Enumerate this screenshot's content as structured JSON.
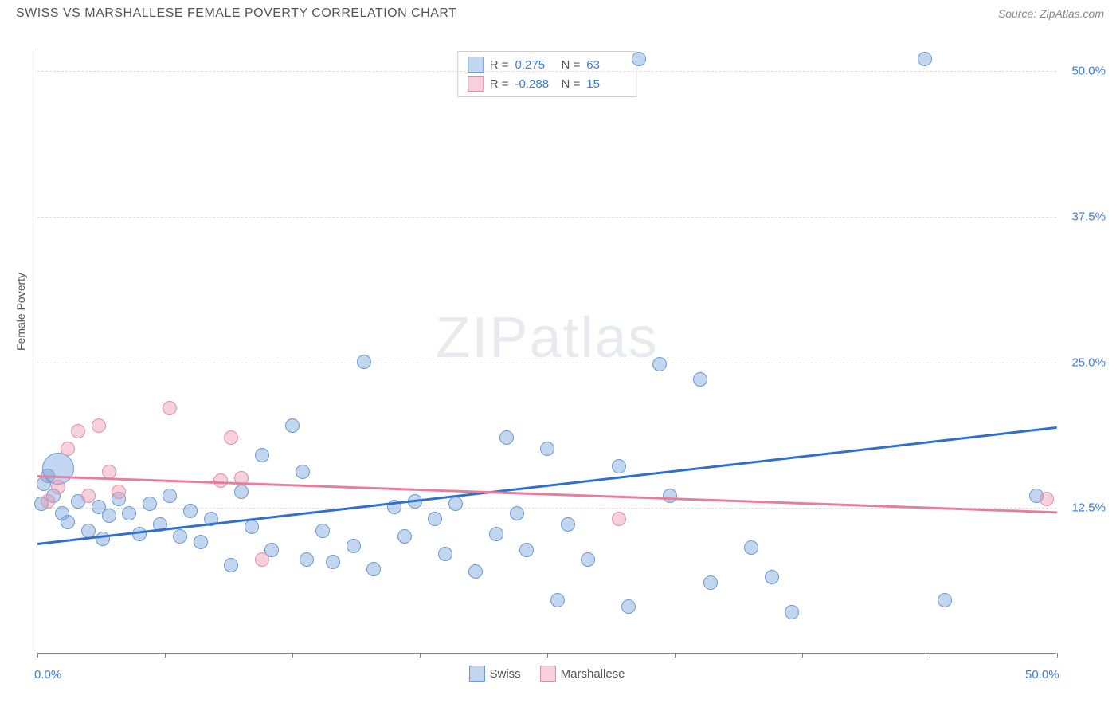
{
  "title": "SWISS VS MARSHALLESE FEMALE POVERTY CORRELATION CHART",
  "source": "Source: ZipAtlas.com",
  "ylabel": "Female Poverty",
  "watermark": "ZIPatlas",
  "chart": {
    "type": "scatter",
    "xlim": [
      0,
      50
    ],
    "ylim": [
      0,
      52
    ],
    "xticks": [
      0,
      6.25,
      12.5,
      18.75,
      25,
      31.25,
      37.5,
      43.75,
      50
    ],
    "xtick_labels": {
      "0": "0.0%",
      "50": "50.0%"
    },
    "yticks": [
      12.5,
      25.0,
      37.5,
      50.0
    ],
    "ytick_labels": [
      "12.5%",
      "25.0%",
      "37.5%",
      "50.0%"
    ],
    "grid_color": "#dddddd",
    "axis_color": "#888888",
    "tick_label_color": "#3b7dd8",
    "background_color": "#ffffff",
    "series": [
      {
        "name": "Swiss",
        "fill": "rgba(120,165,220,0.45)",
        "stroke": "#6a9ad0",
        "line_color": "#2f6fd0",
        "r": 0.275,
        "n": 63,
        "trend": {
          "x1": 0,
          "y1": 9.5,
          "x2": 50,
          "y2": 19.5
        },
        "points": [
          [
            0.3,
            14.5
          ],
          [
            0.5,
            15.2
          ],
          [
            0.2,
            12.8
          ],
          [
            0.8,
            13.5
          ],
          [
            1.2,
            12.0
          ],
          [
            1.5,
            11.2
          ],
          [
            1.0,
            15.8,
            20
          ],
          [
            2.0,
            13.0
          ],
          [
            2.5,
            10.5
          ],
          [
            3.0,
            12.5
          ],
          [
            3.2,
            9.8
          ],
          [
            3.5,
            11.8
          ],
          [
            4.0,
            13.2
          ],
          [
            4.5,
            12.0
          ],
          [
            5.0,
            10.2
          ],
          [
            5.5,
            12.8
          ],
          [
            6.0,
            11.0
          ],
          [
            6.5,
            13.5
          ],
          [
            7.0,
            10.0
          ],
          [
            7.5,
            12.2
          ],
          [
            8.0,
            9.5
          ],
          [
            8.5,
            11.5
          ],
          [
            9.5,
            7.5
          ],
          [
            10.0,
            13.8
          ],
          [
            10.5,
            10.8
          ],
          [
            11.0,
            17.0
          ],
          [
            11.5,
            8.8
          ],
          [
            12.5,
            19.5
          ],
          [
            13.0,
            15.5
          ],
          [
            13.2,
            8.0
          ],
          [
            14.0,
            10.5
          ],
          [
            14.5,
            7.8
          ],
          [
            15.5,
            9.2
          ],
          [
            16.0,
            25.0
          ],
          [
            16.5,
            7.2
          ],
          [
            17.5,
            12.5
          ],
          [
            18.0,
            10.0
          ],
          [
            18.5,
            13.0
          ],
          [
            19.5,
            11.5
          ],
          [
            20.0,
            8.5
          ],
          [
            20.5,
            12.8
          ],
          [
            21.5,
            7.0
          ],
          [
            22.5,
            10.2
          ],
          [
            23.0,
            18.5
          ],
          [
            23.5,
            12.0
          ],
          [
            24.0,
            8.8
          ],
          [
            25.0,
            17.5
          ],
          [
            25.5,
            4.5
          ],
          [
            26.0,
            11.0
          ],
          [
            27.0,
            8.0
          ],
          [
            28.5,
            16.0
          ],
          [
            29.0,
            4.0
          ],
          [
            29.5,
            51.0
          ],
          [
            30.5,
            24.8
          ],
          [
            31.0,
            13.5
          ],
          [
            32.5,
            23.5
          ],
          [
            33.0,
            6.0
          ],
          [
            35.0,
            9.0
          ],
          [
            36.0,
            6.5
          ],
          [
            37.0,
            3.5
          ],
          [
            43.5,
            51.0
          ],
          [
            44.5,
            4.5
          ],
          [
            49.0,
            13.5
          ]
        ]
      },
      {
        "name": "Marshallese",
        "fill": "rgba(235,150,175,0.45)",
        "stroke": "#de8fa8",
        "line_color": "#e77ea0",
        "r": -0.288,
        "n": 15,
        "trend": {
          "x1": 0,
          "y1": 15.3,
          "x2": 50,
          "y2": 12.2
        },
        "points": [
          [
            0.5,
            13.0
          ],
          [
            1.0,
            14.2
          ],
          [
            1.5,
            17.5
          ],
          [
            2.0,
            19.0
          ],
          [
            2.5,
            13.5
          ],
          [
            3.0,
            19.5
          ],
          [
            3.5,
            15.5
          ],
          [
            4.0,
            13.8
          ],
          [
            6.5,
            21.0
          ],
          [
            9.0,
            14.8
          ],
          [
            9.5,
            18.5
          ],
          [
            10.0,
            15.0
          ],
          [
            11.0,
            8.0
          ],
          [
            28.5,
            11.5
          ],
          [
            49.5,
            13.2
          ]
        ]
      }
    ]
  },
  "legend_top": [
    {
      "r_label": "R =",
      "r_value": "0.275",
      "n_label": "N =",
      "n_value": "63"
    },
    {
      "r_label": "R =",
      "r_value": "-0.288",
      "n_label": "N =",
      "n_value": "15"
    }
  ],
  "legend_bottom": [
    "Swiss",
    "Marshallese"
  ]
}
